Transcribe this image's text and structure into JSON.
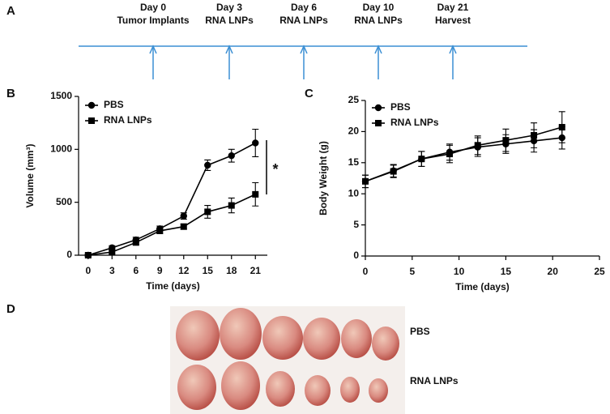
{
  "panel_labels": [
    "A",
    "B",
    "C",
    "D"
  ],
  "timeline": {
    "color": "#3b8fd4",
    "events": [
      {
        "day": "Day 0",
        "label": "Tumor Implants"
      },
      {
        "day": "Day 3",
        "label": "RNA LNPs"
      },
      {
        "day": "Day 6",
        "label": "RNA LNPs"
      },
      {
        "day": "Day 10",
        "label": "RNA LNPs"
      },
      {
        "day": "Day 21",
        "label": "Harvest"
      }
    ]
  },
  "chart_data": [
    {
      "type": "line",
      "y_label": "Volume (mm³)",
      "x_label": "Time (days)",
      "x": [
        0,
        3,
        6,
        9,
        12,
        15,
        18,
        21
      ],
      "xlim": [
        -1.2,
        22.5
      ],
      "xticks": [
        0,
        3,
        6,
        9,
        12,
        15,
        18,
        21
      ],
      "ylim": [
        0,
        1500
      ],
      "yticks": [
        0,
        500,
        1000,
        1500
      ],
      "significance": "*",
      "series": [
        {
          "name": "PBS",
          "marker": "circle",
          "color": "#000000",
          "values": [
            0,
            70,
            145,
            250,
            370,
            850,
            940,
            1060
          ],
          "errors": [
            10,
            20,
            25,
            25,
            30,
            50,
            60,
            130
          ]
        },
        {
          "name": "RNA LNPs",
          "marker": "square",
          "color": "#000000",
          "values": [
            0,
            30,
            120,
            230,
            270,
            410,
            470,
            575
          ],
          "errors": [
            10,
            15,
            20,
            25,
            25,
            60,
            70,
            110
          ]
        }
      ]
    },
    {
      "type": "line",
      "y_label": "Body Weight (g)",
      "x_label": "Time (days)",
      "x": [
        0,
        3,
        6,
        9,
        12,
        15,
        18,
        21
      ],
      "xlim": [
        0,
        25
      ],
      "xticks": [
        0,
        5,
        10,
        15,
        20,
        25
      ],
      "ylim": [
        0,
        25
      ],
      "yticks": [
        0,
        5,
        10,
        15,
        20,
        25
      ],
      "series": [
        {
          "name": "PBS",
          "marker": "circle",
          "color": "#000000",
          "values": [
            12,
            13.7,
            15.6,
            16.7,
            17.5,
            18,
            18.5,
            19
          ],
          "errors": [
            1,
            1,
            1.2,
            1.3,
            1.5,
            1.5,
            1.8,
            1.8
          ]
        },
        {
          "name": "RNA LNPs",
          "marker": "square",
          "color": "#000000",
          "values": [
            12,
            13.6,
            15.6,
            16.4,
            17.8,
            18.6,
            19.4,
            20.7
          ],
          "errors": [
            1,
            1,
            1.2,
            1.4,
            1.5,
            1.8,
            2,
            2.5
          ]
        }
      ]
    }
  ],
  "photo": {
    "rows": [
      "PBS",
      "RNA LNPs"
    ]
  }
}
